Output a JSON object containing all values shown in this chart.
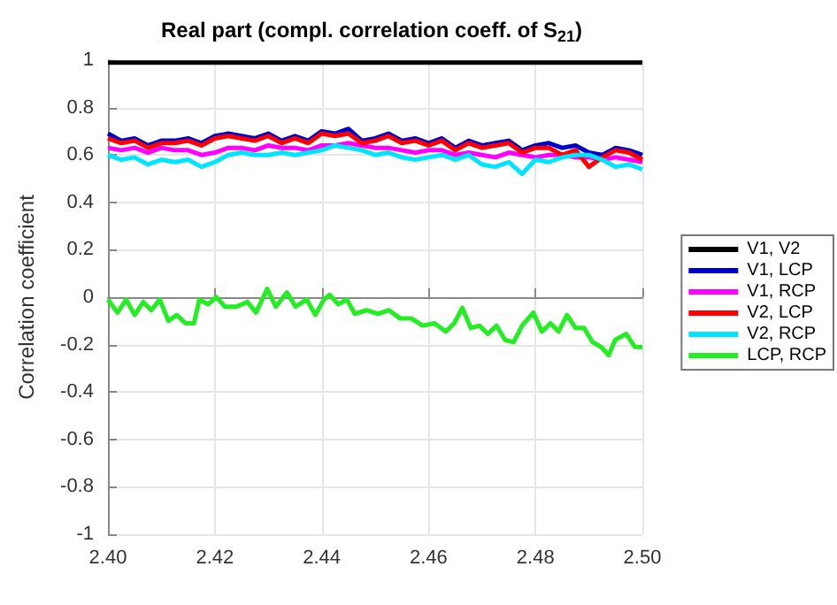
{
  "chart_data": {
    "type": "line",
    "title": "Real part (compl. correlation coeff. of S$_{21}$)",
    "ylabel": "Correlation coefficient",
    "x": [
      2.4,
      2.4025,
      2.405,
      2.4075,
      2.41,
      2.4125,
      2.415,
      2.4175,
      2.42,
      2.4225,
      2.425,
      2.4275,
      2.43,
      2.4325,
      2.435,
      2.4375,
      2.44,
      2.4425,
      2.445,
      2.4475,
      2.45,
      2.4525,
      2.455,
      2.4575,
      2.46,
      2.4625,
      2.465,
      2.4675,
      2.47,
      2.4725,
      2.475,
      2.4775,
      2.48,
      2.4825,
      2.485,
      2.4875,
      2.49,
      2.4925,
      2.495,
      2.4975,
      2.5
    ],
    "series": [
      {
        "name": "V1, V2",
        "color": "#000000",
        "x": [
          2.4,
          2.425,
          2.45,
          2.475,
          2.5
        ],
        "values": [
          0.99,
          0.99,
          0.99,
          0.99,
          0.99
        ]
      },
      {
        "name": "V1, LCP",
        "color": "#0000cc",
        "values": [
          0.69,
          0.66,
          0.67,
          0.64,
          0.66,
          0.66,
          0.67,
          0.65,
          0.68,
          0.69,
          0.68,
          0.67,
          0.69,
          0.66,
          0.68,
          0.66,
          0.7,
          0.69,
          0.71,
          0.66,
          0.67,
          0.69,
          0.66,
          0.67,
          0.65,
          0.67,
          0.63,
          0.66,
          0.64,
          0.65,
          0.66,
          0.62,
          0.64,
          0.65,
          0.63,
          0.64,
          0.61,
          0.6,
          0.63,
          0.62,
          0.6
        ]
      },
      {
        "name": "V1, RCP",
        "color": "#ff00ff",
        "values": [
          0.63,
          0.62,
          0.63,
          0.61,
          0.63,
          0.62,
          0.62,
          0.6,
          0.61,
          0.63,
          0.63,
          0.62,
          0.64,
          0.63,
          0.63,
          0.62,
          0.64,
          0.64,
          0.65,
          0.64,
          0.63,
          0.63,
          0.62,
          0.61,
          0.62,
          0.62,
          0.6,
          0.61,
          0.6,
          0.59,
          0.61,
          0.6,
          0.59,
          0.6,
          0.6,
          0.59,
          0.59,
          0.58,
          0.59,
          0.58,
          0.57
        ]
      },
      {
        "name": "V2, LCP",
        "color": "#ff0000",
        "values": [
          0.67,
          0.65,
          0.66,
          0.63,
          0.65,
          0.65,
          0.66,
          0.64,
          0.67,
          0.68,
          0.67,
          0.66,
          0.68,
          0.65,
          0.67,
          0.65,
          0.69,
          0.68,
          0.69,
          0.65,
          0.66,
          0.68,
          0.65,
          0.66,
          0.64,
          0.66,
          0.62,
          0.65,
          0.63,
          0.64,
          0.65,
          0.61,
          0.63,
          0.63,
          0.6,
          0.62,
          0.55,
          0.59,
          0.62,
          0.61,
          0.58
        ]
      },
      {
        "name": "V2, RCP",
        "color": "#00e5ff",
        "values": [
          0.6,
          0.58,
          0.59,
          0.56,
          0.58,
          0.57,
          0.58,
          0.55,
          0.57,
          0.6,
          0.61,
          0.6,
          0.6,
          0.61,
          0.6,
          0.61,
          0.62,
          0.64,
          0.63,
          0.62,
          0.6,
          0.61,
          0.59,
          0.58,
          0.59,
          0.6,
          0.58,
          0.6,
          0.56,
          0.55,
          0.57,
          0.52,
          0.58,
          0.57,
          0.59,
          0.6,
          0.6,
          0.58,
          0.55,
          0.56,
          0.54
        ]
      },
      {
        "name": "LCP, RCP",
        "color": "#22ee22",
        "x": [
          2.4,
          2.4018,
          2.4034,
          2.405,
          2.4066,
          2.4081,
          2.4097,
          2.4113,
          2.4129,
          2.4145,
          2.4161,
          2.4171,
          2.4187,
          2.4203,
          2.4219,
          2.424,
          2.4261,
          2.4277,
          2.4298,
          2.4314,
          2.4335,
          2.4351,
          2.4372,
          2.4388,
          2.4404,
          2.4415,
          2.4431,
          2.4447,
          2.4462,
          2.4484,
          2.4505,
          2.4526,
          2.4547,
          2.4568,
          2.4589,
          2.4611,
          2.4632,
          2.4648,
          2.4663,
          2.4679,
          2.4695,
          2.4711,
          2.4727,
          2.4743,
          2.4759,
          2.4775,
          2.4796,
          2.4812,
          2.4828,
          2.4843,
          2.4859,
          2.4875,
          2.4891,
          2.4907,
          2.4923,
          2.4937,
          2.4949,
          2.497,
          2.4986,
          2.5
        ],
        "values": [
          -0.01,
          -0.065,
          -0.01,
          -0.075,
          -0.02,
          -0.055,
          -0.01,
          -0.1,
          -0.075,
          -0.11,
          -0.11,
          -0.01,
          -0.03,
          0.0,
          -0.04,
          -0.04,
          -0.02,
          -0.065,
          0.035,
          -0.04,
          0.02,
          -0.04,
          -0.01,
          -0.075,
          -0.01,
          0.01,
          -0.03,
          -0.01,
          -0.07,
          -0.055,
          -0.07,
          -0.055,
          -0.09,
          -0.09,
          -0.12,
          -0.11,
          -0.145,
          -0.11,
          -0.045,
          -0.13,
          -0.12,
          -0.155,
          -0.12,
          -0.18,
          -0.19,
          -0.12,
          -0.065,
          -0.145,
          -0.11,
          -0.145,
          -0.075,
          -0.13,
          -0.13,
          -0.19,
          -0.21,
          -0.245,
          -0.18,
          -0.155,
          -0.21,
          -0.21
        ]
      }
    ],
    "xlim": [
      2.4,
      2.5
    ],
    "xticks": [
      {
        "value": 2.4,
        "label": "2.40"
      },
      {
        "value": 2.42,
        "label": "2.42"
      },
      {
        "value": 2.44,
        "label": "2.44"
      },
      {
        "value": 2.46,
        "label": "2.46"
      },
      {
        "value": 2.48,
        "label": "2.48"
      },
      {
        "value": 2.5,
        "label": "2.50"
      }
    ],
    "ylim": [
      -1,
      1
    ],
    "yticks": [
      -1,
      -0.8,
      -0.6,
      -0.4,
      -0.2,
      0,
      0.2,
      0.4,
      0.6,
      0.8,
      1
    ],
    "grid": true,
    "legend": "right",
    "marker": "none",
    "line_style": "solid"
  }
}
